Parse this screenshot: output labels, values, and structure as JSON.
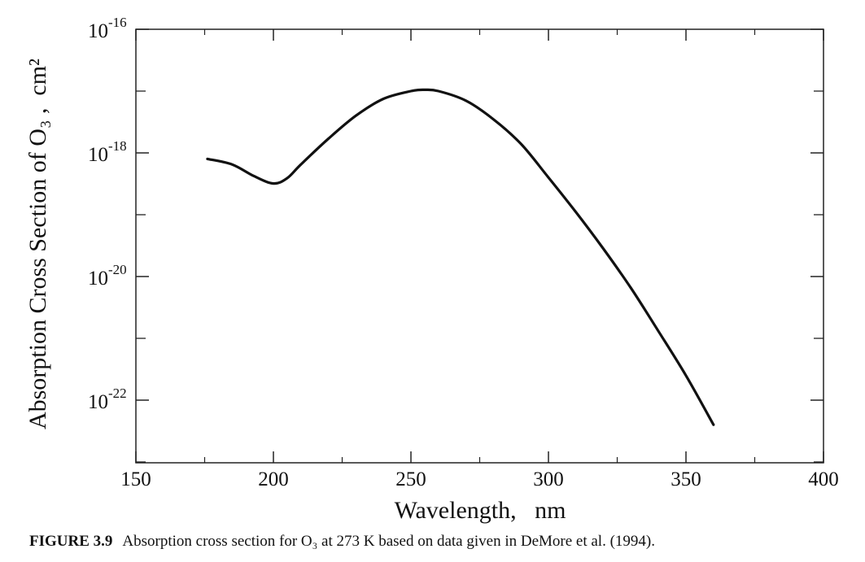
{
  "chart_data": {
    "type": "line",
    "title": "",
    "xlabel": "Wavelength,   nm",
    "ylabel": "Absorption Cross Section of O₃ ,  cm²",
    "xlim": [
      150,
      400
    ],
    "ylim": [
      1e-23,
      1e-16
    ],
    "yscale": "log",
    "grid": false,
    "x_ticks": [
      150,
      200,
      250,
      300,
      350,
      400
    ],
    "x_tick_labels": [
      "150",
      "200",
      "250",
      "300",
      "350",
      "400"
    ],
    "y_major_ticks": [
      {
        "value": 1e-16,
        "base": "10",
        "exponent": "-16"
      },
      {
        "value": 1e-18,
        "base": "10",
        "exponent": "-18"
      },
      {
        "value": 1e-20,
        "base": "10",
        "exponent": "-20"
      },
      {
        "value": 1e-22,
        "base": "10",
        "exponent": "-22"
      }
    ],
    "y_minor_ticks": [
      1e-17,
      1e-19,
      1e-21,
      1e-23
    ],
    "series": [
      {
        "color": "#111111",
        "x": [
          176,
          185,
          193,
          200,
          205,
          210,
          220,
          230,
          240,
          250,
          255,
          260,
          270,
          280,
          290,
          300,
          310,
          320,
          330,
          340,
          350,
          360
        ],
        "y": [
          8e-19,
          6.5e-19,
          4.2e-19,
          3.2e-19,
          3.9e-19,
          6.5e-19,
          1.7e-18,
          4e-18,
          7.5e-18,
          1e-17,
          1.05e-17,
          1e-17,
          7e-18,
          3.5e-18,
          1.4e-18,
          4e-19,
          1.1e-19,
          2.8e-20,
          6.5e-21,
          1.3e-21,
          2.5e-22,
          4e-23
        ]
      }
    ]
  },
  "caption": {
    "label": "FIGURE 3.9",
    "text": "Absorption cross section for O₃ at 273 K based on data given in DeMore et al. (1994)."
  }
}
